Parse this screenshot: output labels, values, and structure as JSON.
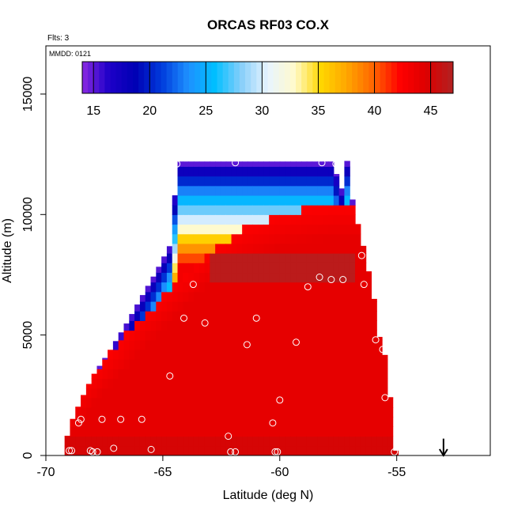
{
  "chart_data": {
    "type": "heatmap",
    "title": "ORCAS RF03 CO.X",
    "subtitle": "Flts: 3",
    "annotation": "MMDD: 0121",
    "xlabel": "Latitude (deg N)",
    "ylabel": "Altitude (m)",
    "xlim": [
      -70,
      -51
    ],
    "ylim": [
      0,
      17000
    ],
    "xticks": [
      "-70",
      "-65",
      "-60",
      "-55"
    ],
    "xtick_values": [
      -70,
      -65,
      -60,
      -55
    ],
    "yticks": [
      "0",
      "5000",
      "10000",
      "15000"
    ],
    "ytick_values": [
      0,
      5000,
      10000,
      15000
    ],
    "colorbar": {
      "range": [
        14,
        47
      ],
      "ticks": [
        "15",
        "20",
        "25",
        "30",
        "35",
        "40",
        "45"
      ],
      "tick_values": [
        15,
        20,
        25,
        30,
        35,
        40,
        45
      ],
      "colors": [
        "#8a2be2",
        "#1e00c8",
        "#0000b4",
        "#003cdc",
        "#1e90ff",
        "#00bfff",
        "#87cefa",
        "#e8f4ff",
        "#fffacd",
        "#ffd700",
        "#ffa500",
        "#ff6400",
        "#ff0000",
        "#dc0000",
        "#b22222"
      ]
    },
    "envelope": {
      "lat": [
        -69.2,
        -69.0,
        -68.5,
        -68.0,
        -67.3,
        -66.6,
        -65.9,
        -65.3,
        -64.6,
        -64.4,
        -57.7,
        -57.5,
        -57.3,
        -57.1,
        -57.1,
        -57.0,
        -56.8,
        -56.5,
        -56.0,
        -55.8,
        -55.4,
        -55.1
      ],
      "top": [
        300,
        1200,
        2300,
        3300,
        4300,
        5400,
        6600,
        7600,
        8900,
        12200,
        12200,
        11300,
        11000,
        12400,
        11300,
        11200,
        10100,
        9000,
        6700,
        5100,
        3800,
        200
      ]
    },
    "field": {
      "background": 44,
      "inner_boundary_lat": [
        -69.2,
        -67.5,
        -66.0,
        -64.2,
        -63.0,
        -61.5,
        -60.0,
        -58.5,
        -57.5
      ],
      "inner_boundary_alt": [
        2000,
        4000,
        5600,
        7400,
        8500,
        9400,
        10000,
        10300,
        10400
      ],
      "layer_alt": [
        12200,
        11000,
        10000,
        9200,
        8000,
        7000
      ],
      "layer_val": [
        15,
        22,
        28,
        36,
        47,
        42
      ]
    },
    "points": [
      {
        "lat": -64.4,
        "alt": 12100
      },
      {
        "lat": -61.9,
        "alt": 12150
      },
      {
        "lat": -58.2,
        "alt": 12150
      },
      {
        "lat": -57.6,
        "alt": 12100
      },
      {
        "lat": -56.5,
        "alt": 8300
      },
      {
        "lat": -63.7,
        "alt": 7100
      },
      {
        "lat": -58.3,
        "alt": 7400
      },
      {
        "lat": -58.8,
        "alt": 7000
      },
      {
        "lat": -57.8,
        "alt": 7300
      },
      {
        "lat": -57.3,
        "alt": 7300
      },
      {
        "lat": -56.4,
        "alt": 7100
      },
      {
        "lat": -64.1,
        "alt": 5700
      },
      {
        "lat": -63.2,
        "alt": 5500
      },
      {
        "lat": -61.0,
        "alt": 5700
      },
      {
        "lat": -61.4,
        "alt": 4600
      },
      {
        "lat": -59.3,
        "alt": 4700
      },
      {
        "lat": -55.9,
        "alt": 4800
      },
      {
        "lat": -55.6,
        "alt": 4400
      },
      {
        "lat": -64.7,
        "alt": 3300
      },
      {
        "lat": -60.0,
        "alt": 2300
      },
      {
        "lat": -55.5,
        "alt": 2400
      },
      {
        "lat": -68.5,
        "alt": 1500
      },
      {
        "lat": -68.6,
        "alt": 1350
      },
      {
        "lat": -67.6,
        "alt": 1500
      },
      {
        "lat": -66.8,
        "alt": 1500
      },
      {
        "lat": -65.9,
        "alt": 1500
      },
      {
        "lat": -60.3,
        "alt": 1350
      },
      {
        "lat": -62.2,
        "alt": 800
      },
      {
        "lat": -69.0,
        "alt": 200
      },
      {
        "lat": -68.9,
        "alt": 200
      },
      {
        "lat": -68.1,
        "alt": 200
      },
      {
        "lat": -68.0,
        "alt": 150
      },
      {
        "lat": -67.8,
        "alt": 150
      },
      {
        "lat": -67.1,
        "alt": 300
      },
      {
        "lat": -65.5,
        "alt": 250
      },
      {
        "lat": -62.1,
        "alt": 150
      },
      {
        "lat": -61.9,
        "alt": 150
      },
      {
        "lat": -60.2,
        "alt": 150
      },
      {
        "lat": -60.1,
        "alt": 150
      },
      {
        "lat": -55.1,
        "alt": 150
      }
    ],
    "arrow": {
      "lat": -53.0,
      "alt_from": 700,
      "alt_to": 0
    }
  }
}
